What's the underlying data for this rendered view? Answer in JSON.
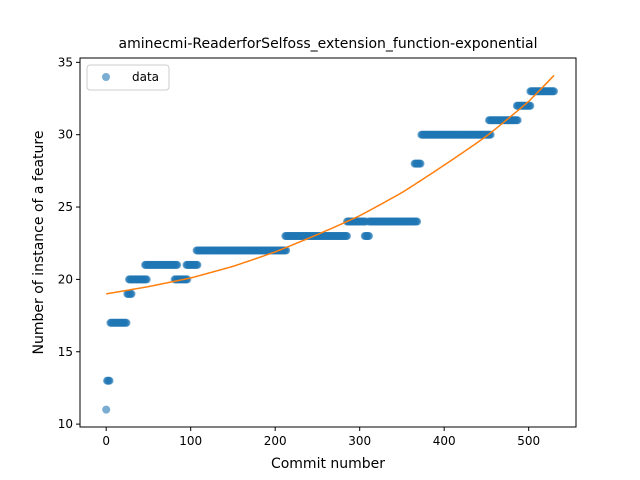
{
  "chart_data": {
    "type": "scatter",
    "title": "aminecmi-ReaderforSelfoss_extension_function-exponential",
    "xlabel": "Commit number",
    "ylabel": "Number of instance of a feature",
    "xlim": [
      -31,
      556
    ],
    "ylim": [
      9.8,
      35.3
    ],
    "xticks": [
      0,
      100,
      200,
      300,
      400,
      500
    ],
    "yticks": [
      10,
      15,
      20,
      25,
      30,
      35
    ],
    "grid": false,
    "legend": {
      "position": "top-left",
      "entries": [
        "data"
      ]
    },
    "colors": {
      "data": "#1f77b4",
      "fit": "#ff7f0e"
    },
    "series": [
      {
        "name": "data",
        "kind": "scatter",
        "steps": [
          [
            0,
            0,
            11
          ],
          [
            1,
            4,
            13
          ],
          [
            5,
            24,
            17
          ],
          [
            25,
            30,
            19
          ],
          [
            27,
            48,
            20
          ],
          [
            46,
            84,
            21
          ],
          [
            81,
            96,
            20
          ],
          [
            95,
            108,
            21
          ],
          [
            107,
            213,
            22
          ],
          [
            212,
            285,
            23
          ],
          [
            285,
            307,
            24
          ],
          [
            306,
            311,
            23
          ],
          [
            311,
            368,
            24
          ],
          [
            365,
            372,
            28
          ],
          [
            373,
            455,
            30
          ],
          [
            453,
            487,
            31
          ],
          [
            486,
            502,
            32
          ],
          [
            502,
            530,
            33
          ]
        ]
      },
      {
        "name": "",
        "kind": "line",
        "x": [
          0,
          50,
          100,
          150,
          200,
          250,
          300,
          350,
          400,
          450,
          500,
          530
        ],
        "y": [
          19.0,
          19.5,
          20.1,
          20.9,
          21.9,
          23.1,
          24.4,
          26.0,
          27.9,
          29.9,
          32.3,
          34.1
        ]
      }
    ]
  }
}
